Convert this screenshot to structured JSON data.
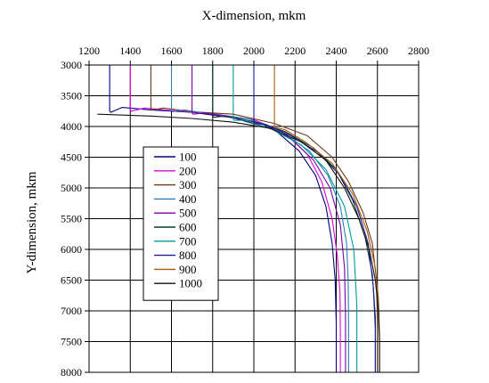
{
  "chart_data": {
    "type": "line",
    "xlabel": "X-dimension, mkm",
    "ylabel": "Y-dimension, mkm",
    "xlim": [
      1200,
      2800
    ],
    "ylim": [
      3000,
      8000
    ],
    "y_inverted": true,
    "x_axis_position": "top",
    "x_ticks": [
      1200,
      1400,
      1600,
      1800,
      2000,
      2200,
      2400,
      2600,
      2800
    ],
    "y_ticks": [
      3000,
      3500,
      4000,
      4500,
      5000,
      5500,
      6000,
      6500,
      7000,
      7500,
      8000
    ],
    "grid": true,
    "legend_position": "left-center",
    "series": [
      {
        "name": "100",
        "color": "#000080",
        "x": [
          1300,
          1300,
          1305,
          1360,
          1500,
          1700,
          1900,
          2100,
          2220,
          2300,
          2350,
          2380,
          2395,
          2400,
          2400
        ],
        "y": [
          3000,
          3750,
          3770,
          3690,
          3730,
          3770,
          3860,
          4050,
          4400,
          4800,
          5300,
          5900,
          6500,
          7200,
          8000
        ]
      },
      {
        "name": "200",
        "color": "#e000e0",
        "x": [
          1400,
          1400,
          1405,
          1470,
          1600,
          1800,
          2000,
          2150,
          2260,
          2330,
          2380,
          2405,
          2418,
          2420,
          2420
        ],
        "y": [
          3000,
          3730,
          3750,
          3700,
          3740,
          3790,
          3890,
          4100,
          4450,
          4900,
          5500,
          6100,
          6700,
          7300,
          8000
        ]
      },
      {
        "name": "300",
        "color": "#6b3a1f",
        "x": [
          1500,
          1500,
          1505,
          1560,
          1700,
          1900,
          2100,
          2260,
          2380,
          2460,
          2530,
          2575,
          2595,
          2600,
          2600
        ],
        "y": [
          3000,
          3710,
          3730,
          3700,
          3760,
          3800,
          3950,
          4150,
          4500,
          4900,
          5400,
          5900,
          6500,
          7200,
          8000
        ]
      },
      {
        "name": "400",
        "color": "#2a7fb8",
        "x": [
          1600,
          1600,
          1605,
          1660,
          1800,
          1980,
          2140,
          2270,
          2360,
          2420,
          2450,
          2458,
          2460,
          2460
        ],
        "y": [
          3000,
          3740,
          3760,
          3730,
          3800,
          3880,
          4100,
          4400,
          4800,
          5300,
          5900,
          6500,
          7200,
          8000
        ]
      },
      {
        "name": "500",
        "color": "#7a00a8",
        "x": [
          1700,
          1700,
          1705,
          1760,
          1900,
          2050,
          2180,
          2290,
          2370,
          2420,
          2440,
          2445,
          2445
        ],
        "y": [
          3000,
          3780,
          3800,
          3780,
          3860,
          3960,
          4200,
          4550,
          5000,
          5600,
          6300,
          7100,
          8000
        ]
      },
      {
        "name": "600",
        "color": "#003a2a",
        "x": [
          1800,
          1800,
          1805,
          1860,
          2000,
          2150,
          2290,
          2400,
          2480,
          2540,
          2575,
          2590,
          2590
        ],
        "y": [
          3000,
          3830,
          3850,
          3830,
          3920,
          4080,
          4350,
          4700,
          5200,
          5800,
          6400,
          7100,
          8000
        ]
      },
      {
        "name": "700",
        "color": "#009a9a",
        "x": [
          1900,
          1900,
          1905,
          1960,
          2090,
          2230,
          2350,
          2440,
          2485,
          2500,
          2500
        ],
        "y": [
          3000,
          3880,
          3900,
          3900,
          4050,
          4300,
          4700,
          5300,
          6000,
          6900,
          8000
        ]
      },
      {
        "name": "800",
        "color": "#1a1a9a",
        "x": [
          2000,
          2000,
          2005,
          2060,
          2180,
          2310,
          2420,
          2500,
          2555,
          2580,
          2590,
          2590
        ],
        "y": [
          3000,
          3930,
          3950,
          3970,
          4150,
          4420,
          4800,
          5300,
          5900,
          6600,
          7300,
          8000
        ]
      },
      {
        "name": "900",
        "color": "#a85a10",
        "x": [
          2100,
          2100,
          2105,
          2150,
          2250,
          2380,
          2480,
          2550,
          2590,
          2605,
          2610,
          2610
        ],
        "y": [
          3000,
          4000,
          4020,
          4050,
          4250,
          4600,
          5100,
          5700,
          6300,
          6800,
          7400,
          8000
        ]
      },
      {
        "name": "1000",
        "color": "#111111",
        "x": [
          1240,
          1500,
          1700,
          1900,
          2080,
          2230,
          2350,
          2440,
          2510,
          2560,
          2590,
          2605,
          2610,
          2610
        ],
        "y": [
          3800,
          3830,
          3870,
          3930,
          4030,
          4250,
          4550,
          5000,
          5500,
          6000,
          6500,
          7000,
          7500,
          8000
        ]
      }
    ]
  }
}
